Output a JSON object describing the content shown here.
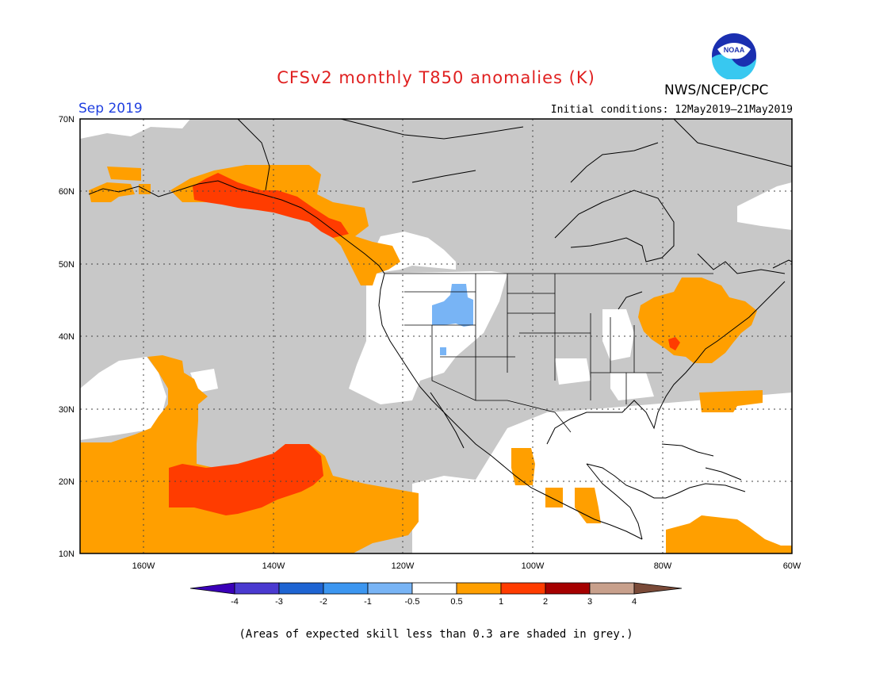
{
  "header": {
    "title": "CFSv2 monthly T850 anomalies (K)",
    "agency": "NWS/NCEP/CPC",
    "logo_text": "NOAA",
    "valid_month": "Sep 2019",
    "initial_conditions": "Initial conditions: 12May2019–21May2019"
  },
  "map": {
    "lat_ticks": [
      "70N",
      "60N",
      "50N",
      "40N",
      "30N",
      "20N",
      "10N"
    ],
    "lon_ticks": [
      "160W",
      "140W",
      "120W",
      "100W",
      "80W",
      "60W"
    ],
    "extent": {
      "lon_min": -170,
      "lon_max": -60,
      "lat_min": 10,
      "lat_max": 70
    },
    "grey_meaning": "low skill",
    "colors": {
      "grey": "#c8c8c8",
      "ocean": "#ffffff",
      "land_outline": "#000000",
      "pos_0_5_1": "#ff9f00",
      "pos_1_2": "#ff3c00",
      "neg_1_0_5": "#78b4f5"
    },
    "anomaly_regions": [
      {
        "name": "alaska-gulf-coast",
        "category": "1 to 2"
      },
      {
        "name": "alaska-margin",
        "category": "0.5 to 1"
      },
      {
        "name": "eastern-us-northeast",
        "category": "0.5 to 1"
      },
      {
        "name": "central-pacific",
        "category": "1 to 2"
      },
      {
        "name": "subtropical-pacific",
        "category": "0.5 to 1"
      },
      {
        "name": "idaho-montana",
        "category": "-1 to -0.5"
      },
      {
        "name": "caribbean-south",
        "category": "0.5 to 1"
      },
      {
        "name": "central-america",
        "category": "0.5 to 1"
      },
      {
        "name": "western-atlantic",
        "category": "0.5 to 1"
      }
    ]
  },
  "colorbar": {
    "labels": [
      "-4",
      "-3",
      "-2",
      "-1",
      "-0.5",
      "0.5",
      "1",
      "2",
      "3",
      "4"
    ],
    "colors": [
      "#3a00b8",
      "#4a3ad0",
      "#1e64d2",
      "#3c96f0",
      "#78b4f5",
      "#ffffff",
      "#ff9f00",
      "#ff3c00",
      "#a50000",
      "#c8a08c",
      "#7a4a38"
    ]
  },
  "footnote": "(Areas of expected skill less than 0.3 are shaded in grey.)"
}
